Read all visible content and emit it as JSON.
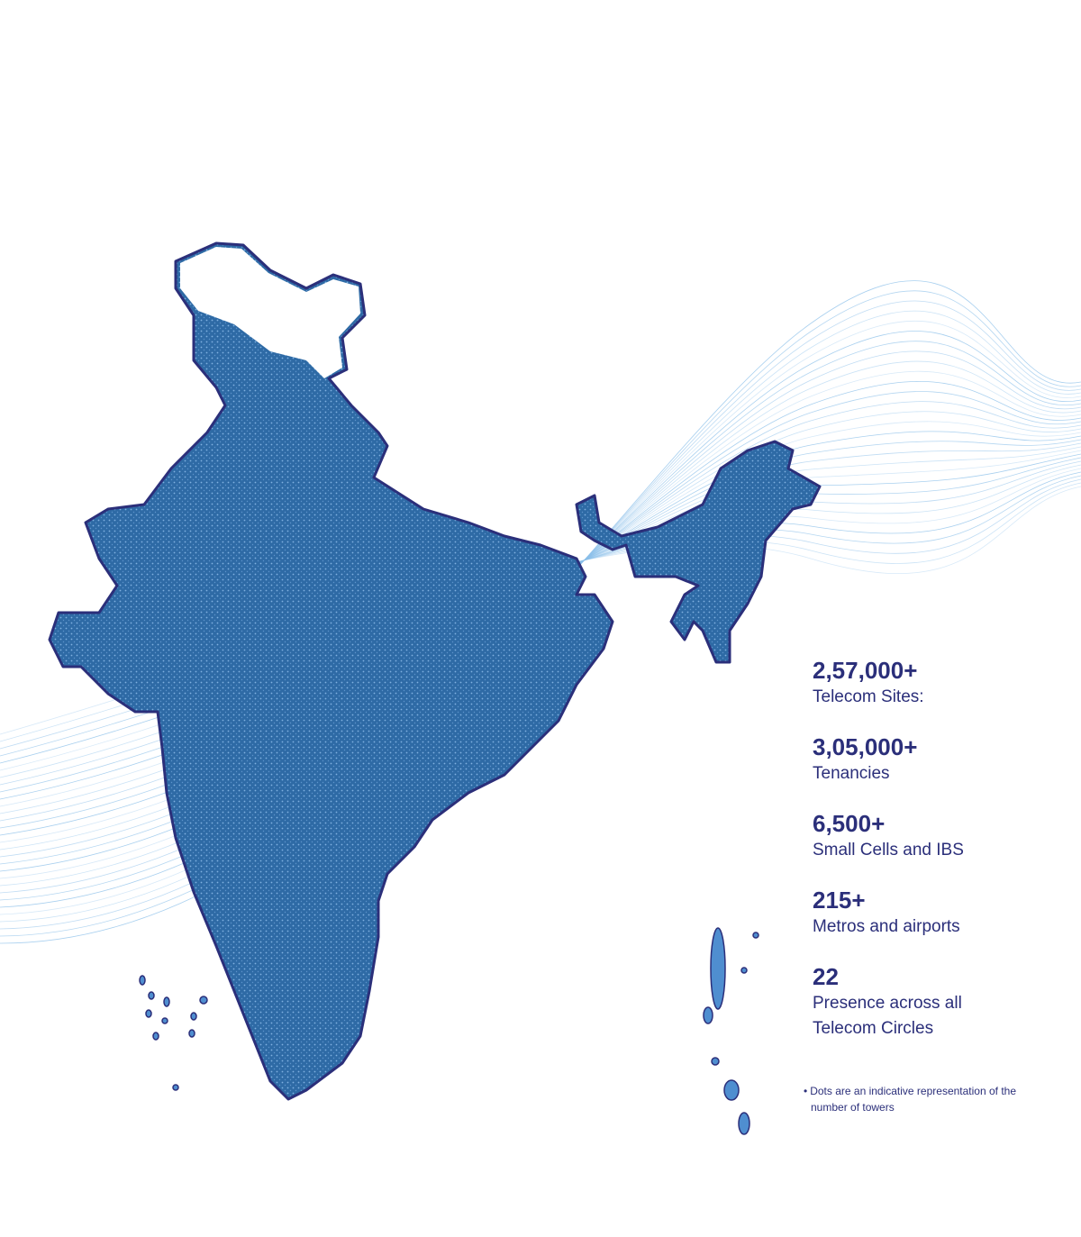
{
  "stats": [
    {
      "value": "2,57,000+",
      "label": "Telecom Sites:"
    },
    {
      "value": "3,05,000+",
      "label": "Tenancies"
    },
    {
      "value": "6,500+",
      "label": "Small Cells and IBS"
    },
    {
      "value": "215+",
      "label": "Metros and airports"
    },
    {
      "value": "22",
      "label": "Presence across all Telecom Circles"
    }
  ],
  "note": "Dots are an indicative representation of the number of towers"
}
